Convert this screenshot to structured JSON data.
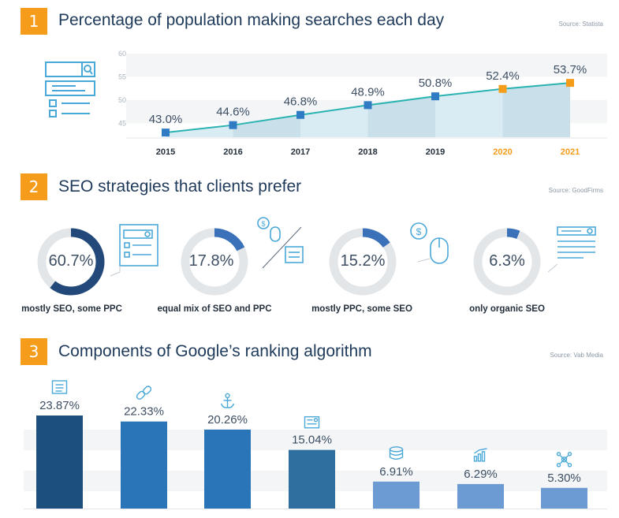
{
  "sections": [
    {
      "number": "1",
      "title": "Percentage of population making searches each day",
      "source": "Source: Statista"
    },
    {
      "number": "2",
      "title": "SEO strategies that clients prefer",
      "source": "Source: GoodFirms"
    },
    {
      "number": "3",
      "title": "Components of Google’s ranking algorithm",
      "source": "Source: Vab Media"
    }
  ],
  "colors": {
    "accent": "#f59c1a",
    "line": "#2bb3b1",
    "marker_blue": "#2f7bc4",
    "marker_orange": "#f59c1a",
    "area": "#d9ecf4",
    "donut_track": "#e3e6e9",
    "donut_fill": "#2b5ea3",
    "icon": "#4aa8d8"
  },
  "chart_data": [
    {
      "type": "line",
      "x": [
        "2015",
        "2016",
        "2017",
        "2018",
        "2019",
        "2020",
        "2021"
      ],
      "series": [
        {
          "values": [
            43.0,
            44.6,
            46.8,
            48.9,
            50.8,
            52.4,
            53.7
          ]
        }
      ],
      "data_labels": [
        "43.0%",
        "44.6%",
        "46.8%",
        "48.9%",
        "50.8%",
        "52.4%",
        "53.7%"
      ],
      "highlighted_x": [
        "2020",
        "2021"
      ],
      "y_ticks": [
        "45",
        "50",
        "55",
        "60"
      ],
      "ylim": [
        42,
        60
      ],
      "grid": true
    },
    {
      "type": "pie",
      "style": "donut",
      "categories": [
        "mostly SEO, some PPC",
        "equal mix of SEO and PPC",
        "mostly PPC, some SEO",
        "only organic SEO"
      ],
      "values": [
        60.7,
        17.8,
        15.2,
        6.3
      ],
      "data_labels": [
        "60.7%",
        "17.8%",
        "15.2%",
        "6.3%"
      ],
      "icons": [
        "search-form-icon",
        "money-mouse-icon",
        "money-mouse-icon",
        "search-form-icon"
      ]
    },
    {
      "type": "bar",
      "values": [
        23.87,
        22.33,
        20.26,
        15.04,
        6.91,
        6.29,
        5.3
      ],
      "data_labels": [
        "23.87%",
        "22.33%",
        "20.26%",
        "15.04%",
        "6.91%",
        "6.29%",
        "5.30%"
      ],
      "icons": [
        "document-icon",
        "link-icon",
        "anchor-icon",
        "keyword-icon",
        "database-icon",
        "bar-chart-icon",
        "network-icon"
      ],
      "bar_colors": [
        "#1d4f7c",
        "#2a74b8",
        "#2a74b8",
        "#2f6f9f",
        "#6b9bd2",
        "#6b9bd2",
        "#6b9bd2"
      ],
      "ylim": [
        0,
        26
      ]
    }
  ]
}
